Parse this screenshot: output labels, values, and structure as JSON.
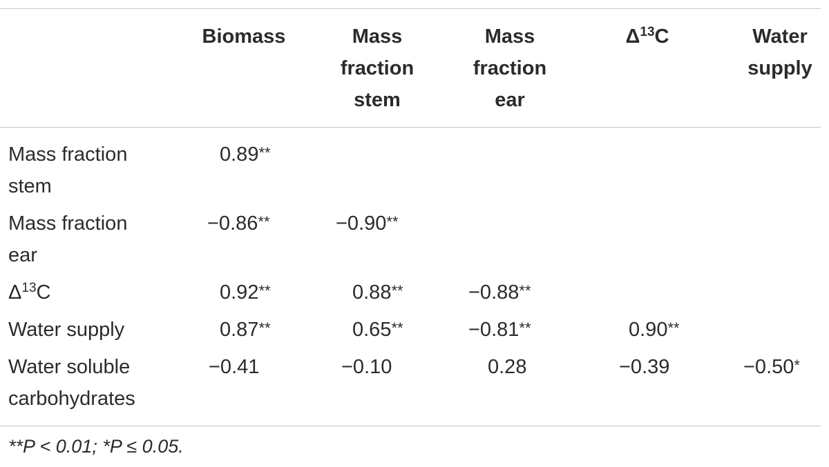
{
  "header": {
    "biomass": "Biomass",
    "mass_fraction_stem": [
      "Mass",
      "fraction",
      "stem"
    ],
    "mass_fraction_ear": [
      "Mass",
      "fraction",
      "ear"
    ],
    "delta": "Δ",
    "delta_sup": "13",
    "delta_rest": "C",
    "water_supply": [
      "Water",
      "supply"
    ]
  },
  "rows": [
    {
      "label": [
        "Mass fraction",
        "stem"
      ],
      "values": [
        {
          "v": "0.89",
          "s": "**"
        }
      ]
    },
    {
      "label": [
        "Mass fraction",
        "ear"
      ],
      "values": [
        {
          "v": "−0.86",
          "s": "**"
        },
        {
          "v": "−0.90",
          "s": "**"
        }
      ]
    },
    {
      "label_delta": "Δ",
      "label_sup": "13",
      "label_rest": "C",
      "values": [
        {
          "v": "0.92",
          "s": "**"
        },
        {
          "v": "0.88",
          "s": "**"
        },
        {
          "v": "−0.88",
          "s": "**"
        }
      ]
    },
    {
      "label": [
        "Water supply"
      ],
      "values": [
        {
          "v": "0.87",
          "s": "**"
        },
        {
          "v": "0.65",
          "s": "**"
        },
        {
          "v": "−0.81",
          "s": "**"
        },
        {
          "v": "0.90",
          "s": "**"
        }
      ]
    },
    {
      "label": [
        "Water soluble",
        "carbohydrates"
      ],
      "values": [
        {
          "v": "−0.41",
          "s": ""
        },
        {
          "v": "−0.10",
          "s": ""
        },
        {
          "v": "0.28",
          "s": ""
        },
        {
          "v": "−0.39",
          "s": ""
        },
        {
          "v": "−0.50",
          "s": "*"
        }
      ]
    }
  ],
  "footnote": "**P < 0.01; *P ≤ 0.05."
}
